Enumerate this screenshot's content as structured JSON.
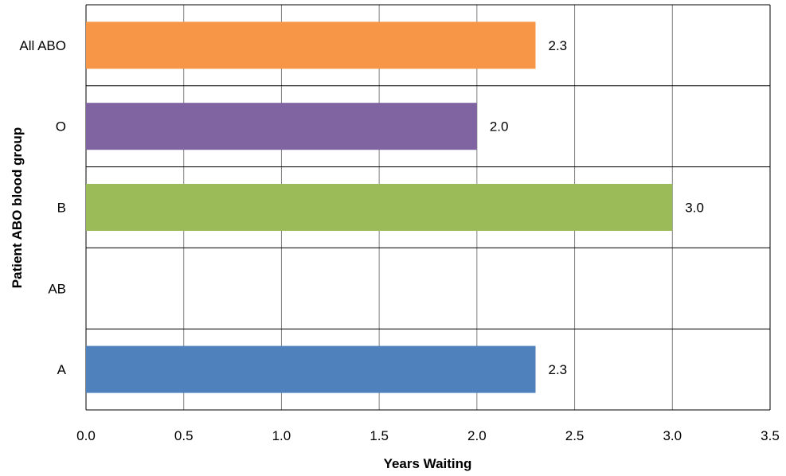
{
  "chart_data": {
    "type": "bar",
    "orientation": "horizontal",
    "title": "",
    "xlabel": "Years Waiting",
    "ylabel": "Patient ABO blood group",
    "xlim": [
      0,
      3.5
    ],
    "x_ticks": [
      "0.0",
      "0.5",
      "1.0",
      "1.5",
      "2.0",
      "2.5",
      "3.0",
      "3.5"
    ],
    "grid": true,
    "legend": "none",
    "categories": [
      "All ABO",
      "O",
      "B",
      "AB",
      "A"
    ],
    "values": [
      2.3,
      2.0,
      3.0,
      null,
      2.3
    ],
    "data_labels": [
      "2.3",
      "2.0",
      "3.0",
      "",
      "2.3"
    ],
    "colors": [
      "#F79646",
      "#8064A2",
      "#9BBB59",
      "#4F81BD",
      "#4F81BD"
    ]
  }
}
